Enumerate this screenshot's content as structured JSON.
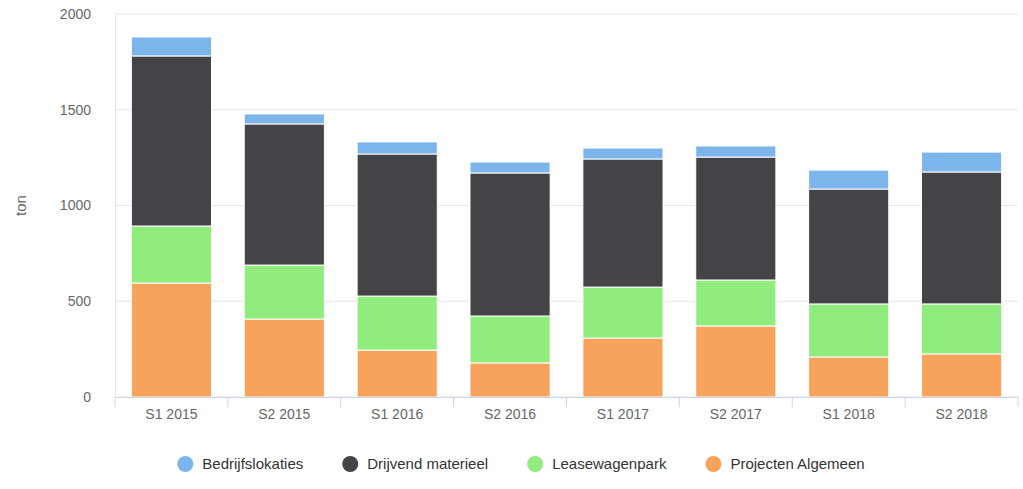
{
  "chart_data": {
    "type": "bar",
    "y_label": "ton",
    "categories": [
      "S1 2015",
      "S2 2015",
      "S1 2016",
      "S2 2016",
      "S1 2017",
      "S2 2017",
      "S1 2018",
      "S2 2018"
    ],
    "series": [
      {
        "name": "Bedrijfslokaties",
        "color": "#7cb5ec",
        "values": [
          99,
          52,
          63,
          57,
          57,
          58,
          99,
          104
        ]
      },
      {
        "name": "Drijvend materieel",
        "color": "#434348",
        "values": [
          888,
          737,
          742,
          747,
          669,
          642,
          600,
          689
        ]
      },
      {
        "name": "Leasewagenpark",
        "color": "#90ed7d",
        "values": [
          298,
          282,
          282,
          245,
          266,
          240,
          277,
          261
        ]
      },
      {
        "name": "Projecten Algemeen",
        "color": "#f7a35c",
        "values": [
          595,
          407,
          245,
          178,
          308,
          371,
          209,
          225
        ]
      }
    ],
    "ylim": [
      0,
      2000
    ],
    "yticks": [
      0,
      500,
      1000,
      1500,
      2000
    ],
    "stacked": true,
    "grid": true,
    "legend": "bottom"
  }
}
